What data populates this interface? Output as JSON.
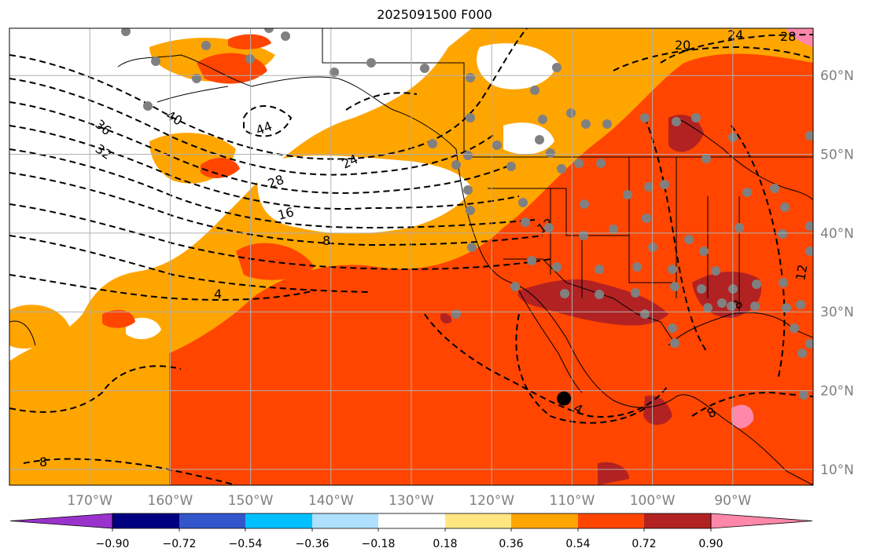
{
  "title": "2025091500 F000",
  "colors": {
    "levels": [
      "#9933cc",
      "#000080",
      "#3355cc",
      "#00bfff",
      "#b0e0ff",
      "#ffffff",
      "#ffe680",
      "#ffa500",
      "#ff4500",
      "#b22222",
      "#ff88aa"
    ],
    "land": "#ffffff",
    "grid": "#b0b0b0",
    "station": "#808080",
    "marker": "#000000"
  },
  "chart_data": {
    "type": "heatmap",
    "title": "2025091500 F000",
    "x_ticks": [
      "170°W",
      "160°W",
      "150°W",
      "140°W",
      "130°W",
      "120°W",
      "110°W",
      "100°W",
      "90°W"
    ],
    "y_ticks": [
      "60°N",
      "50°N",
      "40°N",
      "30°N",
      "20°N",
      "10°N"
    ],
    "lon_range": [
      -180,
      -80
    ],
    "lat_range": [
      8,
      66
    ],
    "colorbar": {
      "ticks": [
        "−0.90",
        "−0.72",
        "−0.54",
        "−0.36",
        "−0.18",
        "0.18",
        "0.36",
        "0.54",
        "0.72",
        "0.90"
      ],
      "boundaries": [
        -0.9,
        -0.72,
        -0.54,
        -0.36,
        -0.18,
        0.18,
        0.36,
        0.54,
        0.72,
        0.9
      ],
      "extend": "both"
    },
    "contour_labels": [
      "36",
      "32",
      "40",
      "44",
      "28",
      "24",
      "16",
      "8",
      "4",
      "12",
      "20",
      "24",
      "28",
      "8",
      "4",
      "8",
      "12",
      "8"
    ],
    "marker": {
      "lon": -111,
      "lat": 19
    }
  }
}
